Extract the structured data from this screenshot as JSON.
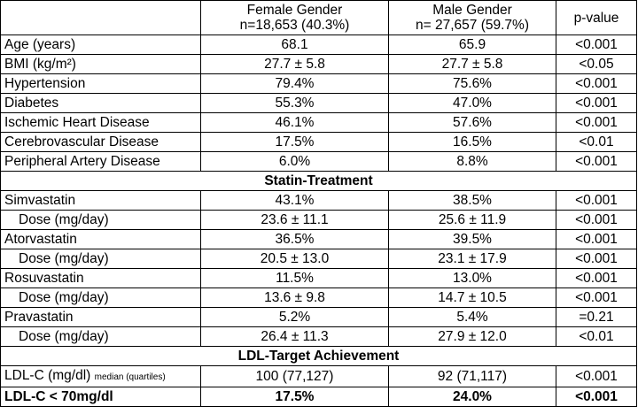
{
  "header": {
    "col1": "",
    "female_line1": "Female Gender",
    "female_line2": "n=18,653 (40.3%)",
    "male_line1": "Male Gender",
    "male_line2": "n= 27,657 (59.7%)",
    "pvalue": "p-value"
  },
  "rows": [
    {
      "label": "Age (years)",
      "female": "68.1",
      "male": "65.9",
      "p": "<0.001"
    },
    {
      "label": "BMI (kg/m²)",
      "female": "27.7 ± 5.8",
      "male": "27.7 ± 5.8",
      "p": "<0.05"
    },
    {
      "label": "Hypertension",
      "female": "79.4%",
      "male": "75.6%",
      "p": "<0.001"
    },
    {
      "label": "Diabetes",
      "female": "55.3%",
      "male": "47.0%",
      "p": "<0.001"
    },
    {
      "label": "Ischemic Heart Disease",
      "female": "46.1%",
      "male": "57.6%",
      "p": "<0.001"
    },
    {
      "label": "Cerebrovascular Disease",
      "female": "17.5%",
      "male": "16.5%",
      "p": "<0.01"
    },
    {
      "label": "Peripheral Artery Disease",
      "female": "6.0%",
      "male": "8.8%",
      "p": "<0.001"
    }
  ],
  "section_statin": "Statin-Treatment",
  "statin_rows": [
    {
      "label": "Simvastatin",
      "female": "43.1%",
      "male": "38.5%",
      "p": "<0.001"
    },
    {
      "label": "Dose (mg/day)",
      "female": "23.6 ± 11.1",
      "male": "25.6 ± 11.9",
      "p": "<0.001"
    },
    {
      "label": "Atorvastatin",
      "female": "36.5%",
      "male": "39.5%",
      "p": "<0.001"
    },
    {
      "label": "Dose (mg/day)",
      "female": "20.5 ± 13.0",
      "male": "23.1 ± 17.9",
      "p": "<0.001"
    },
    {
      "label": "Rosuvastatin",
      "female": "11.5%",
      "male": "13.0%",
      "p": "<0.001"
    },
    {
      "label": "Dose (mg/day)",
      "female": "13.6 ± 9.8",
      "male": "14.7 ± 10.5",
      "p": "<0.001"
    },
    {
      "label": "Pravastatin",
      "female": "5.2%",
      "male": "5.4%",
      "p": "=0.21"
    },
    {
      "label": "Dose (mg/day)",
      "female": "26.4 ± 11.3",
      "male": "27.9 ± 12.0",
      "p": "<0.01"
    }
  ],
  "section_ldl": "LDL-Target Achievement",
  "ldl_rows": [
    {
      "label": "LDL-C (mg/dl)",
      "label_small": "median (quartiles)",
      "female": "100 (77,127)",
      "male": "92 (71,117)",
      "p": "<0.001"
    },
    {
      "label": "LDL-C < 70mg/dl",
      "female": "17.5%",
      "male": "24.0%",
      "p": "<0.001"
    }
  ]
}
